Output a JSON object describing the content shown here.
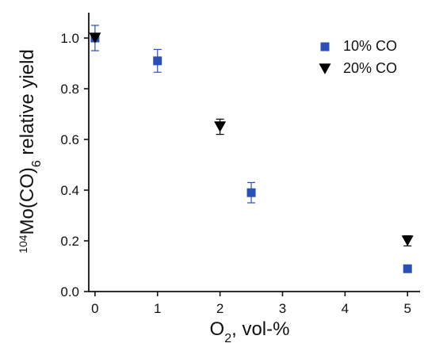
{
  "chart_data": {
    "type": "scatter",
    "xlabel": {
      "main": "O",
      "subscript": "2",
      "rest": ", vol-%"
    },
    "ylabel": {
      "superscript": "104",
      "main": "Mo(CO)",
      "subscript": "6",
      "rest": " relative yield"
    },
    "xlim": [
      -0.1,
      5.2
    ],
    "ylim": [
      0.0,
      1.1
    ],
    "xticks": [
      0,
      1,
      2,
      3,
      4,
      5
    ],
    "yticks": [
      0.0,
      0.2,
      0.4,
      0.6,
      0.8,
      1.0
    ],
    "xtick_labels": [
      "0",
      "1",
      "2",
      "3",
      "4",
      "5"
    ],
    "ytick_labels": [
      "0.0",
      "0.2",
      "0.4",
      "0.6",
      "0.8",
      "1.0"
    ],
    "grid": false,
    "legend_position": "top-right",
    "series": [
      {
        "name": "10% CO",
        "marker": "square",
        "color": "#2a4fb7",
        "x": [
          0,
          1,
          2.5,
          5
        ],
        "y": [
          1.0,
          0.91,
          0.39,
          0.09
        ],
        "yerr": [
          0.05,
          0.045,
          0.04,
          0.0
        ]
      },
      {
        "name": "20% CO",
        "marker": "triangle-down",
        "color": "#000000",
        "x": [
          0,
          2,
          5
        ],
        "y": [
          1.0,
          0.65,
          0.2
        ],
        "yerr": [
          0.0,
          0.03,
          0.02
        ]
      }
    ]
  }
}
